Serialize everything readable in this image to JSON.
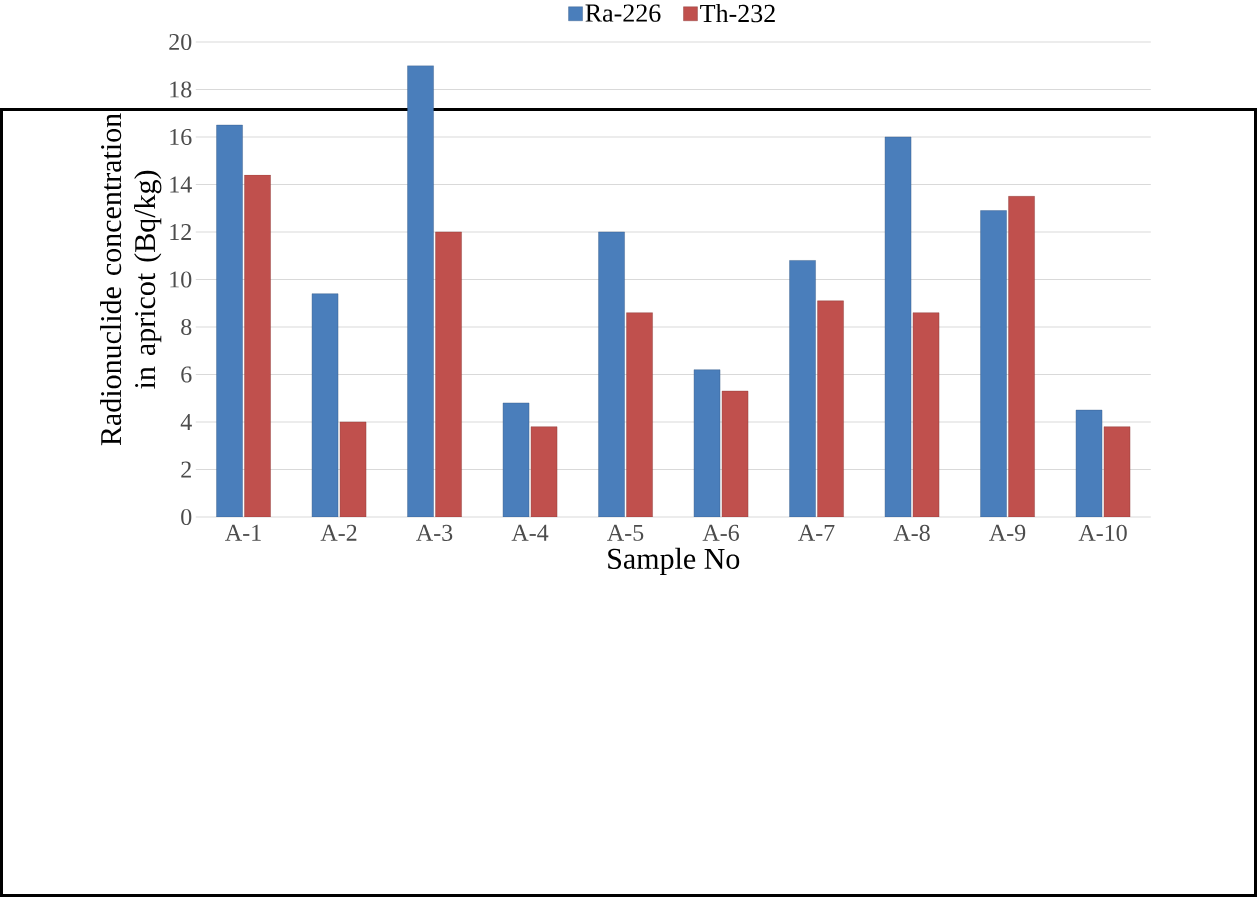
{
  "chart_data": {
    "type": "bar",
    "xlabel": "Sample No",
    "ylabel": "Radionuclide concentration in apricot (Bq/kg)",
    "categories": [
      "A-1",
      "A-2",
      "A-3",
      "A-4",
      "A-5",
      "A-6",
      "A-7",
      "A-8",
      "A-9",
      "A-10"
    ],
    "series": [
      {
        "name": "Ra-226",
        "color": "#4a7ebb",
        "values": [
          16.5,
          9.4,
          19.0,
          4.8,
          12.0,
          6.2,
          10.8,
          16.0,
          12.9,
          4.5
        ]
      },
      {
        "name": "Th-232",
        "color": "#c0504d",
        "values": [
          14.4,
          4.0,
          12.0,
          3.8,
          8.6,
          5.3,
          9.1,
          8.6,
          13.5,
          3.8
        ]
      }
    ],
    "ylim": [
      0,
      20
    ],
    "yticks": [
      0,
      2,
      4,
      6,
      8,
      10,
      12,
      14,
      16,
      18,
      20
    ],
    "grid": "y",
    "legend": "top"
  }
}
